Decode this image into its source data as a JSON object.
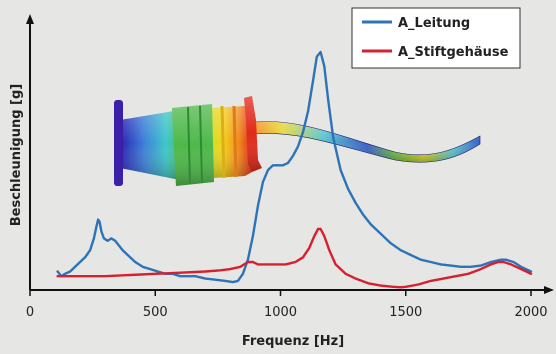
{
  "chart_data": {
    "type": "line",
    "title": "",
    "xlabel": "Frequenz [Hz]",
    "ylabel": "Beschleunigung [g]",
    "xlim": [
      0,
      2050
    ],
    "ylim": [
      0,
      1
    ],
    "xticks": [
      0,
      500,
      1000,
      1500,
      2000
    ],
    "y_tick_labels_shown": false,
    "grid": false,
    "legend_position": "top-right",
    "series": [
      {
        "name": "A_Leitung",
        "color": "#2e73b8",
        "points": [
          [
            110,
            0.07
          ],
          [
            125,
            0.05
          ],
          [
            140,
            0.06
          ],
          [
            160,
            0.07
          ],
          [
            180,
            0.09
          ],
          [
            200,
            0.11
          ],
          [
            220,
            0.13
          ],
          [
            240,
            0.16
          ],
          [
            255,
            0.21
          ],
          [
            265,
            0.26
          ],
          [
            272,
            0.29
          ],
          [
            278,
            0.28
          ],
          [
            285,
            0.24
          ],
          [
            295,
            0.21
          ],
          [
            310,
            0.2
          ],
          [
            325,
            0.21
          ],
          [
            340,
            0.2
          ],
          [
            355,
            0.18
          ],
          [
            370,
            0.16
          ],
          [
            390,
            0.14
          ],
          [
            420,
            0.11
          ],
          [
            450,
            0.09
          ],
          [
            480,
            0.08
          ],
          [
            510,
            0.07
          ],
          [
            540,
            0.06
          ],
          [
            570,
            0.06
          ],
          [
            600,
            0.05
          ],
          [
            630,
            0.05
          ],
          [
            660,
            0.05
          ],
          [
            700,
            0.04
          ],
          [
            740,
            0.035
          ],
          [
            780,
            0.03
          ],
          [
            810,
            0.025
          ],
          [
            830,
            0.03
          ],
          [
            850,
            0.06
          ],
          [
            870,
            0.12
          ],
          [
            890,
            0.22
          ],
          [
            910,
            0.35
          ],
          [
            930,
            0.45
          ],
          [
            950,
            0.5
          ],
          [
            970,
            0.52
          ],
          [
            990,
            0.52
          ],
          [
            1010,
            0.52
          ],
          [
            1030,
            0.53
          ],
          [
            1050,
            0.56
          ],
          [
            1070,
            0.6
          ],
          [
            1090,
            0.66
          ],
          [
            1110,
            0.75
          ],
          [
            1130,
            0.88
          ],
          [
            1145,
            0.98
          ],
          [
            1160,
            1.0
          ],
          [
            1175,
            0.94
          ],
          [
            1190,
            0.8
          ],
          [
            1210,
            0.64
          ],
          [
            1240,
            0.5
          ],
          [
            1270,
            0.42
          ],
          [
            1300,
            0.36
          ],
          [
            1330,
            0.31
          ],
          [
            1360,
            0.27
          ],
          [
            1400,
            0.23
          ],
          [
            1440,
            0.19
          ],
          [
            1480,
            0.16
          ],
          [
            1520,
            0.14
          ],
          [
            1560,
            0.12
          ],
          [
            1600,
            0.11
          ],
          [
            1640,
            0.1
          ],
          [
            1680,
            0.095
          ],
          [
            1720,
            0.09
          ],
          [
            1760,
            0.09
          ],
          [
            1800,
            0.095
          ],
          [
            1840,
            0.11
          ],
          [
            1880,
            0.12
          ],
          [
            1900,
            0.12
          ],
          [
            1930,
            0.11
          ],
          [
            1960,
            0.09
          ],
          [
            2000,
            0.07
          ]
        ]
      },
      {
        "name": "A_Stiftgehäuse",
        "color": "#d62030",
        "points": [
          [
            110,
            0.05
          ],
          [
            200,
            0.05
          ],
          [
            300,
            0.05
          ],
          [
            400,
            0.055
          ],
          [
            500,
            0.06
          ],
          [
            600,
            0.065
          ],
          [
            700,
            0.07
          ],
          [
            760,
            0.075
          ],
          [
            800,
            0.08
          ],
          [
            840,
            0.09
          ],
          [
            870,
            0.11
          ],
          [
            890,
            0.11
          ],
          [
            910,
            0.1
          ],
          [
            940,
            0.1
          ],
          [
            980,
            0.1
          ],
          [
            1020,
            0.1
          ],
          [
            1060,
            0.11
          ],
          [
            1090,
            0.13
          ],
          [
            1115,
            0.17
          ],
          [
            1135,
            0.22
          ],
          [
            1150,
            0.25
          ],
          [
            1160,
            0.25
          ],
          [
            1175,
            0.22
          ],
          [
            1195,
            0.16
          ],
          [
            1220,
            0.1
          ],
          [
            1260,
            0.06
          ],
          [
            1300,
            0.04
          ],
          [
            1350,
            0.02
          ],
          [
            1400,
            0.01
          ],
          [
            1450,
            0.005
          ],
          [
            1480,
            0.003
          ],
          [
            1500,
            0.005
          ],
          [
            1550,
            0.015
          ],
          [
            1600,
            0.03
          ],
          [
            1650,
            0.04
          ],
          [
            1700,
            0.05
          ],
          [
            1750,
            0.06
          ],
          [
            1800,
            0.08
          ],
          [
            1840,
            0.1
          ],
          [
            1870,
            0.11
          ],
          [
            1890,
            0.11
          ],
          [
            1920,
            0.1
          ],
          [
            1960,
            0.08
          ],
          [
            2000,
            0.06
          ]
        ]
      }
    ]
  },
  "model_image": {
    "description_icon": "plug-cable-fem-model-icon",
    "colors": [
      "#2a1fb0",
      "#3d7fd8",
      "#3ec7c9",
      "#4fb84a",
      "#c8df2e",
      "#f5d21a",
      "#f08a1a",
      "#e02a1a"
    ]
  }
}
